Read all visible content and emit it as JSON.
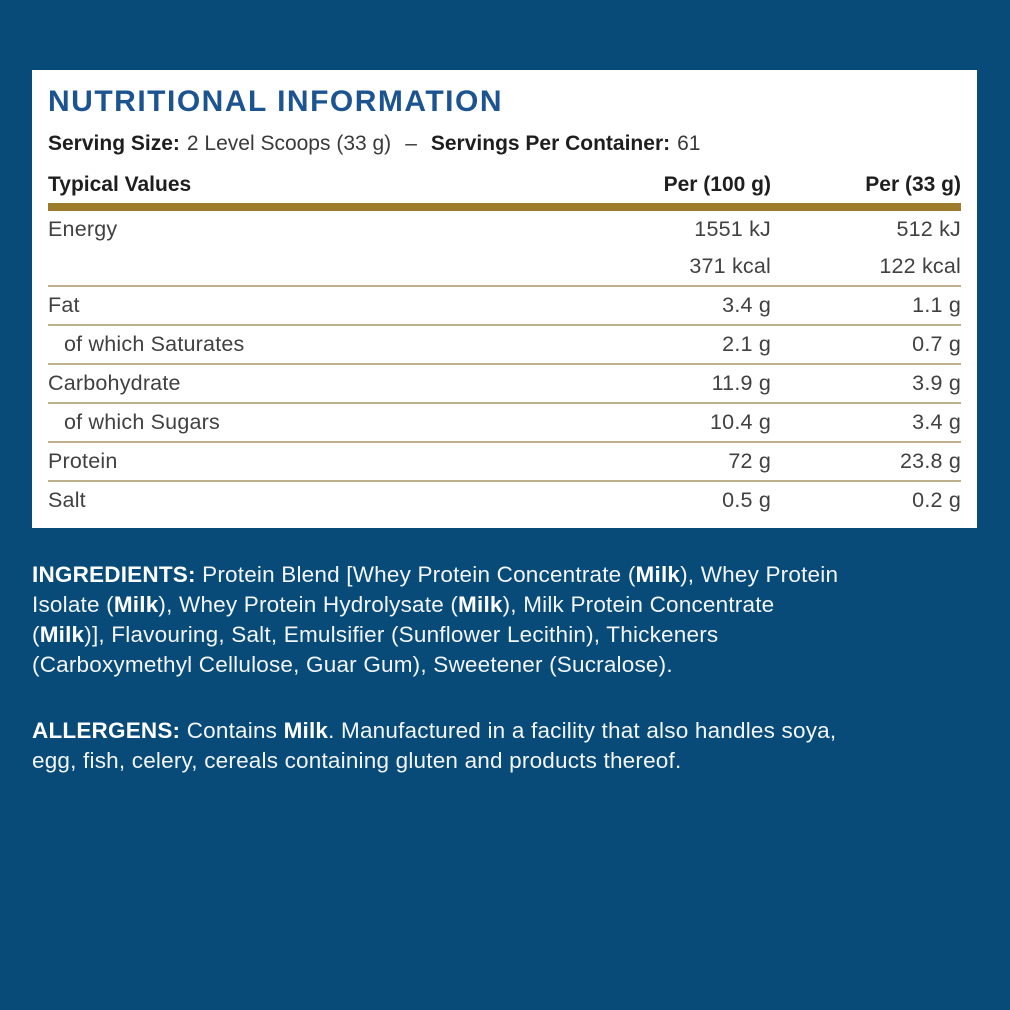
{
  "colors": {
    "background_navy": "#084A78",
    "card_white": "#FFFFFF",
    "title_blue": "#1B5490",
    "gold_bar": "#9C7B2C",
    "thin_rule_tan": "#BEB088",
    "table_text_gray": "#414042",
    "paragraph_white": "#F2F6F9"
  },
  "card": {
    "title": "NUTRITIONAL INFORMATION",
    "serving": {
      "size_label": "Serving Size:",
      "size_value": "2 Level Scoops (33 g)",
      "dash": "–",
      "container_label": "Servings Per Container:",
      "container_value": "61"
    },
    "table": {
      "header": {
        "col1": "Typical Values",
        "col2": "Per (100 g)",
        "col3": "Per (33 g)"
      },
      "rows": [
        {
          "label": "Energy",
          "per100": "1551 kJ",
          "per33": "512 kJ",
          "indent": false,
          "rule_below": false
        },
        {
          "label": "",
          "per100": "371 kcal",
          "per33": "122 kcal",
          "indent": false,
          "rule_below": true
        },
        {
          "label": "Fat",
          "per100": "3.4 g",
          "per33": "1.1 g",
          "indent": false,
          "rule_below": true
        },
        {
          "label": "of which Saturates",
          "per100": "2.1 g",
          "per33": "0.7 g",
          "indent": true,
          "rule_below": true
        },
        {
          "label": "Carbohydrate",
          "per100": "11.9 g",
          "per33": "3.9 g",
          "indent": false,
          "rule_below": true
        },
        {
          "label": "of which Sugars",
          "per100": "10.4 g",
          "per33": "3.4 g",
          "indent": true,
          "rule_below": true
        },
        {
          "label": "Protein",
          "per100": "72 g",
          "per33": "23.8 g",
          "indent": false,
          "rule_below": true
        },
        {
          "label": "Salt",
          "per100": "0.5 g",
          "per33": "0.2 g",
          "indent": false,
          "rule_below": false
        }
      ]
    }
  },
  "ingredients": {
    "lines": [
      [
        {
          "t": "INGREDIENTS:",
          "b": true
        },
        {
          "t": " Protein Blend [Whey Protein Concentrate (",
          "b": false
        },
        {
          "t": "Milk",
          "b": true
        },
        {
          "t": "), Whey Protein",
          "b": false
        }
      ],
      [
        {
          "t": "Isolate (",
          "b": false
        },
        {
          "t": "Milk",
          "b": true
        },
        {
          "t": "), Whey Protein Hydrolysate (",
          "b": false
        },
        {
          "t": "Milk",
          "b": true
        },
        {
          "t": "), Milk Protein Concentrate",
          "b": false
        }
      ],
      [
        {
          "t": "(",
          "b": false
        },
        {
          "t": "Milk",
          "b": true
        },
        {
          "t": ")], Flavouring, Salt, Emulsifier (Sunflower Lecithin), Thickeners",
          "b": false
        }
      ],
      [
        {
          "t": "(Carboxymethyl Cellulose, Guar Gum), Sweetener (Sucralose).",
          "b": false
        }
      ]
    ]
  },
  "allergens": {
    "lines": [
      [
        {
          "t": "ALLERGENS:",
          "b": true
        },
        {
          "t": " Contains ",
          "b": false
        },
        {
          "t": "Milk",
          "b": true
        },
        {
          "t": ". Manufactured in a facility that also handles soya,",
          "b": false
        }
      ],
      [
        {
          "t": "egg, fish, celery, cereals containing gluten and products thereof.",
          "b": false
        }
      ]
    ]
  }
}
